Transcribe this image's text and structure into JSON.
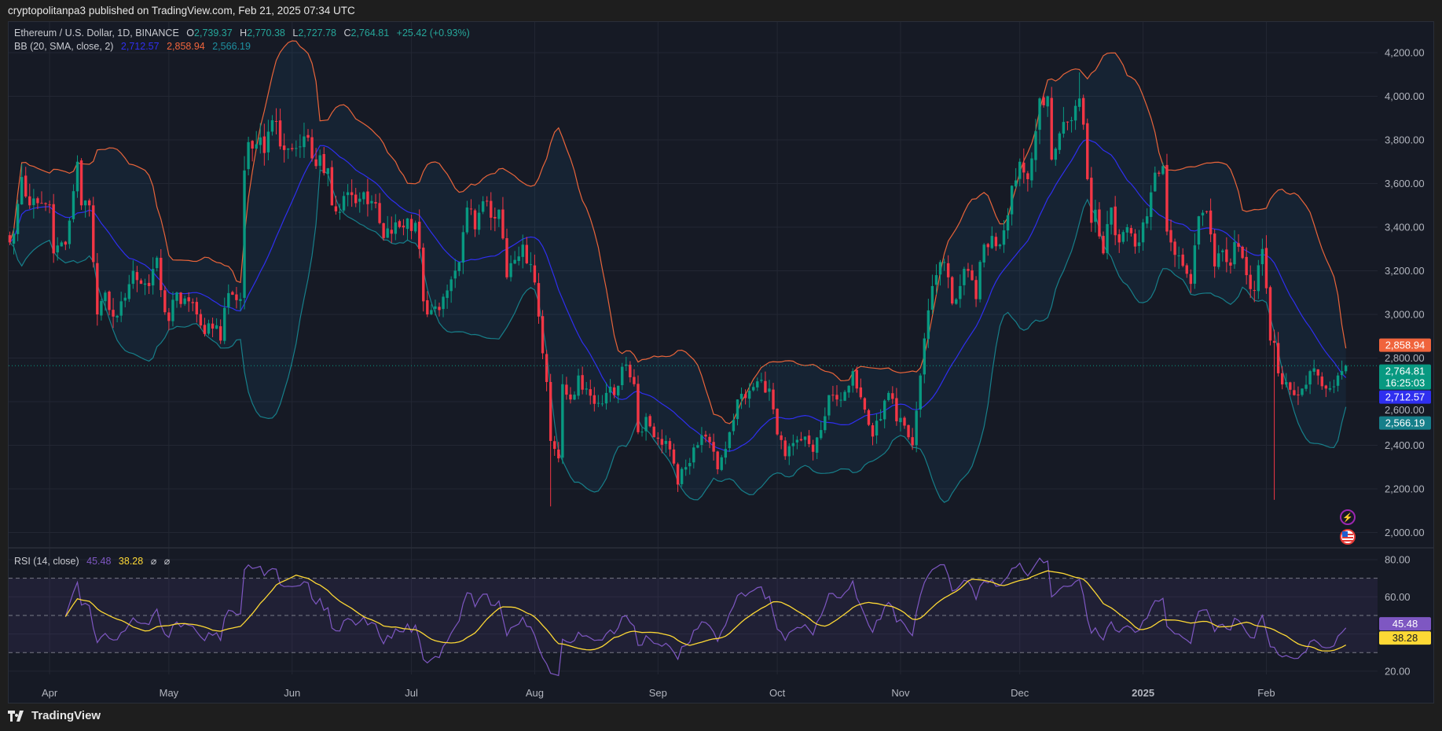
{
  "header": {
    "published": "cryptopolitanpa3 published on TradingView.com, Feb 21, 2025 07:34 UTC"
  },
  "legend": {
    "symbol": "Ethereum / U.S. Dollar, 1D, BINANCE",
    "o_label": "O",
    "o": "2,739.37",
    "h_label": "H",
    "h": "2,770.38",
    "l_label": "L",
    "l": "2,727.78",
    "c_label": "C",
    "c": "2,764.81",
    "change": "+25.42 (+0.93%)",
    "bb_label": "BB (20, SMA, close, 2)",
    "bb_basis": "2,712.57",
    "bb_upper": "2,858.94",
    "bb_lower": "2,566.19",
    "rsi_label": "RSI (14, close)",
    "rsi": "45.48",
    "rsi_ma": "38.28",
    "na1": "⌀",
    "na2": "⌀"
  },
  "axis_labels": {
    "upper": {
      "text": "2,858.94",
      "value": 2858.94,
      "color": "#f0643c"
    },
    "price": {
      "text": "2,764.81",
      "value": 2764.81,
      "color": "#089981"
    },
    "countdown": "16:25:03",
    "basis": {
      "text": "2,712.57",
      "value": 2712.57,
      "color": "#2f2ff0"
    },
    "lower": {
      "text": "2,566.19",
      "value": 2566.19,
      "color": "#167f8a"
    },
    "rsi": {
      "text": "45.48",
      "value": 45.48,
      "color": "#7e57c2"
    },
    "rsi_ma": {
      "text": "38.28",
      "value": 38.28,
      "color": "#fdd835"
    }
  },
  "colors": {
    "up": "#089981",
    "down": "#f23645",
    "basis": "#2f2ff0",
    "upper": "#e8643a",
    "lower": "#167f8a",
    "rsi": "#7e57c2",
    "rsi_ma": "#fdd835"
  },
  "icons": [
    "lightning-event-icon",
    "us-flag-event-icon"
  ],
  "footer": {
    "brand": "TradingView"
  },
  "chart_data": {
    "type": "candlestick",
    "title": "Ethereum / U.S. Dollar, 1D, BINANCE",
    "start_date": "2024-03-22",
    "end_date": "2025-02-21",
    "ylim": [
      1950,
      4290
    ],
    "yticks": [
      2000,
      2200,
      2400,
      2600,
      2800,
      3000,
      3200,
      3400,
      3600,
      3800,
      4000,
      4200
    ],
    "ytick_labels": [
      "2,000.00",
      "2,200.00",
      "2,400.00",
      "2,600.00",
      "2,800.00",
      "3,000.00",
      "3,200.00",
      "3,400.00",
      "3,600.00",
      "3,800.00",
      "4,000.00",
      "4,200.00"
    ],
    "xticks": [
      {
        "label": "Apr",
        "date": "2024-04-01"
      },
      {
        "label": "May",
        "date": "2024-05-01"
      },
      {
        "label": "Jun",
        "date": "2024-06-01"
      },
      {
        "label": "Jul",
        "date": "2024-07-01"
      },
      {
        "label": "Aug",
        "date": "2024-08-01"
      },
      {
        "label": "Sep",
        "date": "2024-09-01"
      },
      {
        "label": "Oct",
        "date": "2024-10-01"
      },
      {
        "label": "Nov",
        "date": "2024-11-01"
      },
      {
        "label": "Dec",
        "date": "2024-12-01"
      },
      {
        "label": "2025",
        "date": "2025-01-01",
        "bold": true
      },
      {
        "label": "Feb",
        "date": "2025-02-01"
      }
    ],
    "close_anchors": [
      [
        "2024-03-22",
        3330
      ],
      [
        "2024-03-23",
        3370
      ],
      [
        "2024-03-25",
        3630
      ],
      [
        "2024-03-27",
        3500
      ],
      [
        "2024-03-29",
        3510
      ],
      [
        "2024-04-01",
        3500
      ],
      [
        "2024-04-02",
        3280
      ],
      [
        "2024-04-04",
        3330
      ],
      [
        "2024-04-05",
        3320
      ],
      [
        "2024-04-08",
        3700
      ],
      [
        "2024-04-09",
        3500
      ],
      [
        "2024-04-11",
        3500
      ],
      [
        "2024-04-12",
        3240
      ],
      [
        "2024-04-13",
        3000
      ],
      [
        "2024-04-15",
        3100
      ],
      [
        "2024-04-17",
        2990
      ],
      [
        "2024-04-19",
        3060
      ],
      [
        "2024-04-22",
        3200
      ],
      [
        "2024-04-24",
        3140
      ],
      [
        "2024-04-26",
        3130
      ],
      [
        "2024-04-28",
        3260
      ],
      [
        "2024-04-30",
        3010
      ],
      [
        "2024-05-01",
        2970
      ],
      [
        "2024-05-03",
        3100
      ],
      [
        "2024-05-06",
        3060
      ],
      [
        "2024-05-08",
        3000
      ],
      [
        "2024-05-10",
        2910
      ],
      [
        "2024-05-13",
        2950
      ],
      [
        "2024-05-14",
        2880
      ],
      [
        "2024-05-15",
        3030
      ],
      [
        "2024-05-17",
        3090
      ],
      [
        "2024-05-19",
        3070
      ],
      [
        "2024-05-20",
        3660
      ],
      [
        "2024-05-21",
        3790
      ],
      [
        "2024-05-23",
        3780
      ],
      [
        "2024-05-25",
        3740
      ],
      [
        "2024-05-27",
        3890
      ],
      [
        "2024-05-29",
        3770
      ],
      [
        "2024-05-31",
        3760
      ],
      [
        "2024-06-03",
        3770
      ],
      [
        "2024-06-05",
        3810
      ],
      [
        "2024-06-07",
        3680
      ],
      [
        "2024-06-10",
        3670
      ],
      [
        "2024-06-11",
        3500
      ],
      [
        "2024-06-13",
        3470
      ],
      [
        "2024-06-15",
        3560
      ],
      [
        "2024-06-17",
        3510
      ],
      [
        "2024-06-19",
        3560
      ],
      [
        "2024-06-21",
        3520
      ],
      [
        "2024-06-24",
        3350
      ],
      [
        "2024-06-26",
        3370
      ],
      [
        "2024-06-30",
        3440
      ],
      [
        "2024-07-02",
        3420
      ],
      [
        "2024-07-03",
        3300
      ],
      [
        "2024-07-04",
        3060
      ],
      [
        "2024-07-05",
        3000
      ],
      [
        "2024-07-08",
        3020
      ],
      [
        "2024-07-10",
        3110
      ],
      [
        "2024-07-13",
        3240
      ],
      [
        "2024-07-15",
        3490
      ],
      [
        "2024-07-17",
        3390
      ],
      [
        "2024-07-20",
        3520
      ],
      [
        "2024-07-22",
        3440
      ],
      [
        "2024-07-23",
        3480
      ],
      [
        "2024-07-25",
        3170
      ],
      [
        "2024-07-27",
        3250
      ],
      [
        "2024-07-29",
        3320
      ],
      [
        "2024-07-31",
        3230
      ],
      [
        "2024-08-02",
        2990
      ],
      [
        "2024-08-04",
        2690
      ],
      [
        "2024-08-05",
        2420
      ],
      [
        "2024-08-07",
        2340
      ],
      [
        "2024-08-08",
        2680
      ],
      [
        "2024-08-10",
        2610
      ],
      [
        "2024-08-12",
        2720
      ],
      [
        "2024-08-14",
        2660
      ],
      [
        "2024-08-16",
        2590
      ],
      [
        "2024-08-19",
        2640
      ],
      [
        "2024-08-21",
        2630
      ],
      [
        "2024-08-23",
        2760
      ],
      [
        "2024-08-24",
        2770
      ],
      [
        "2024-08-26",
        2680
      ],
      [
        "2024-08-27",
        2460
      ],
      [
        "2024-08-29",
        2530
      ],
      [
        "2024-09-01",
        2430
      ],
      [
        "2024-09-03",
        2420
      ],
      [
        "2024-09-06",
        2220
      ],
      [
        "2024-09-08",
        2300
      ],
      [
        "2024-09-10",
        2390
      ],
      [
        "2024-09-13",
        2440
      ],
      [
        "2024-09-16",
        2290
      ],
      [
        "2024-09-19",
        2460
      ],
      [
        "2024-09-21",
        2610
      ],
      [
        "2024-09-24",
        2650
      ],
      [
        "2024-09-27",
        2700
      ],
      [
        "2024-09-29",
        2660
      ],
      [
        "2024-10-01",
        2450
      ],
      [
        "2024-10-03",
        2350
      ],
      [
        "2024-10-05",
        2410
      ],
      [
        "2024-10-08",
        2440
      ],
      [
        "2024-10-10",
        2370
      ],
      [
        "2024-10-12",
        2470
      ],
      [
        "2024-10-14",
        2630
      ],
      [
        "2024-10-16",
        2610
      ],
      [
        "2024-10-20",
        2740
      ],
      [
        "2024-10-22",
        2620
      ],
      [
        "2024-10-25",
        2440
      ],
      [
        "2024-10-27",
        2520
      ],
      [
        "2024-10-29",
        2640
      ],
      [
        "2024-10-31",
        2510
      ],
      [
        "2024-11-02",
        2490
      ],
      [
        "2024-11-04",
        2400
      ],
      [
        "2024-11-06",
        2720
      ],
      [
        "2024-11-07",
        2890
      ],
      [
        "2024-11-09",
        3130
      ],
      [
        "2024-11-10",
        3180
      ],
      [
        "2024-11-12",
        3240
      ],
      [
        "2024-11-14",
        3050
      ],
      [
        "2024-11-16",
        3130
      ],
      [
        "2024-11-18",
        3200
      ],
      [
        "2024-11-20",
        3070
      ],
      [
        "2024-11-22",
        3320
      ],
      [
        "2024-11-24",
        3360
      ],
      [
        "2024-11-26",
        3320
      ],
      [
        "2024-11-29",
        3590
      ],
      [
        "2024-12-01",
        3700
      ],
      [
        "2024-12-03",
        3620
      ],
      [
        "2024-12-05",
        3840
      ],
      [
        "2024-12-06",
        3990
      ],
      [
        "2024-12-08",
        4000
      ],
      [
        "2024-12-09",
        3710
      ],
      [
        "2024-12-11",
        3830
      ],
      [
        "2024-12-13",
        3880
      ],
      [
        "2024-12-16",
        3990
      ],
      [
        "2024-12-17",
        3870
      ],
      [
        "2024-12-18",
        3620
      ],
      [
        "2024-12-19",
        3420
      ],
      [
        "2024-12-20",
        3480
      ],
      [
        "2024-12-22",
        3280
      ],
      [
        "2024-12-24",
        3490
      ],
      [
        "2024-12-26",
        3330
      ],
      [
        "2024-12-28",
        3400
      ],
      [
        "2024-12-31",
        3330
      ],
      [
        "2025-01-02",
        3450
      ],
      [
        "2025-01-04",
        3650
      ],
      [
        "2025-01-06",
        3680
      ],
      [
        "2025-01-07",
        3380
      ],
      [
        "2025-01-08",
        3330
      ],
      [
        "2025-01-10",
        3270
      ],
      [
        "2025-01-13",
        3140
      ],
      [
        "2025-01-15",
        3450
      ],
      [
        "2025-01-17",
        3470
      ],
      [
        "2025-01-19",
        3220
      ],
      [
        "2025-01-20",
        3280
      ],
      [
        "2025-01-22",
        3240
      ],
      [
        "2025-01-25",
        3310
      ],
      [
        "2025-01-27",
        3180
      ],
      [
        "2025-01-29",
        3110
      ],
      [
        "2025-01-31",
        3300
      ],
      [
        "2025-02-01",
        3120
      ],
      [
        "2025-02-02",
        2880
      ],
      [
        "2025-02-03",
        2870
      ],
      [
        "2025-02-04",
        2730
      ],
      [
        "2025-02-06",
        2690
      ],
      [
        "2025-02-08",
        2630
      ],
      [
        "2025-02-10",
        2660
      ],
      [
        "2025-02-12",
        2740
      ],
      [
        "2025-02-14",
        2720
      ],
      [
        "2025-02-16",
        2660
      ],
      [
        "2025-02-18",
        2670
      ],
      [
        "2025-02-19",
        2720
      ],
      [
        "2025-02-20",
        2740
      ],
      [
        "2025-02-21",
        2764.81
      ]
    ],
    "wick_extremes": [
      {
        "date": "2024-08-05",
        "low": 2120
      },
      {
        "date": "2025-02-03",
        "low": 2150,
        "high": 2930
      },
      {
        "date": "2024-12-16",
        "high": 4110
      },
      {
        "date": "2025-02-21",
        "open": 2739.37,
        "high": 2770.38,
        "low": 2727.78,
        "close": 2764.81
      }
    ],
    "indicators": {
      "bb": {
        "length": 20,
        "mult": 2,
        "last": {
          "basis": 2712.57,
          "upper": 2858.94,
          "lower": 2566.19
        }
      },
      "rsi": {
        "length": 14,
        "ma_length": 14,
        "last": {
          "rsi": 45.48,
          "ma": 38.28
        },
        "ylim": [
          14,
          87
        ],
        "yticks": [
          20,
          60,
          80
        ],
        "ytick_labels": [
          "20.00",
          "60.00",
          "80.00"
        ],
        "bands": [
          30,
          50,
          70
        ]
      }
    }
  }
}
